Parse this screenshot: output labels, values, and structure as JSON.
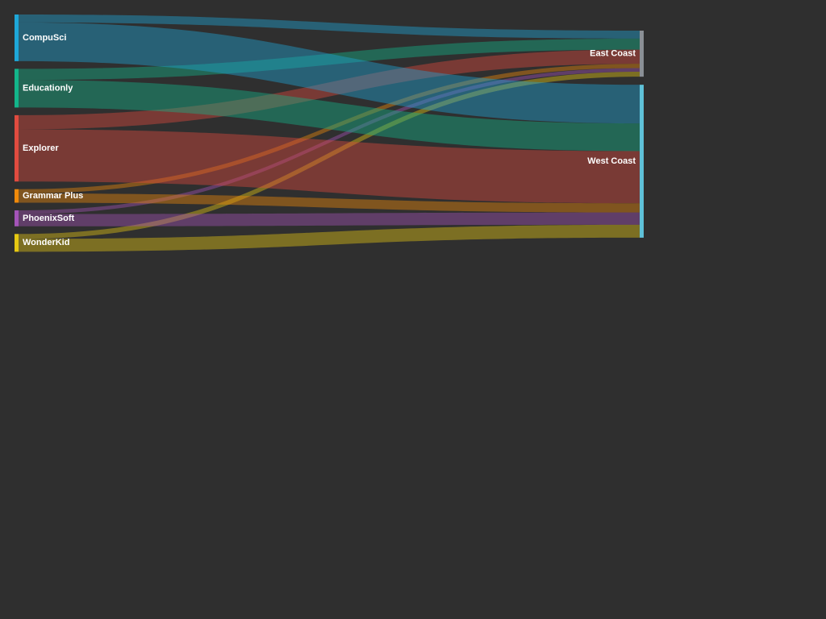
{
  "chart_data": {
    "type": "sankey",
    "sources": [
      {
        "name": "CompuSci",
        "color": "#1ea7d8"
      },
      {
        "name": "Educationly",
        "color": "#13b58a"
      },
      {
        "name": "Explorer",
        "color": "#e04b3f"
      },
      {
        "name": "Grammar Plus",
        "color": "#f08a0a"
      },
      {
        "name": "PhoenixSoft",
        "color": "#a454b8"
      },
      {
        "name": "WonderKid",
        "color": "#e6c812"
      }
    ],
    "targets": [
      {
        "name": "East Coast",
        "color": "#8a8f95"
      },
      {
        "name": "West Coast",
        "color": "#5fc1d8"
      }
    ],
    "links": [
      {
        "source": "CompuSci",
        "target": "East Coast",
        "value": 13
      },
      {
        "source": "CompuSci",
        "target": "West Coast",
        "value": 63
      },
      {
        "source": "Educationly",
        "target": "East Coast",
        "value": 18
      },
      {
        "source": "Educationly",
        "target": "West Coast",
        "value": 45
      },
      {
        "source": "Explorer",
        "target": "East Coast",
        "value": 23
      },
      {
        "source": "Explorer",
        "target": "West Coast",
        "value": 85
      },
      {
        "source": "Grammar Plus",
        "target": "East Coast",
        "value": 7
      },
      {
        "source": "Grammar Plus",
        "target": "West Coast",
        "value": 15
      },
      {
        "source": "PhoenixSoft",
        "target": "East Coast",
        "value": 6
      },
      {
        "source": "PhoenixSoft",
        "target": "West Coast",
        "value": 20
      },
      {
        "source": "WonderKid",
        "target": "East Coast",
        "value": 8
      },
      {
        "source": "WonderKid",
        "target": "West Coast",
        "value": 21
      }
    ]
  }
}
